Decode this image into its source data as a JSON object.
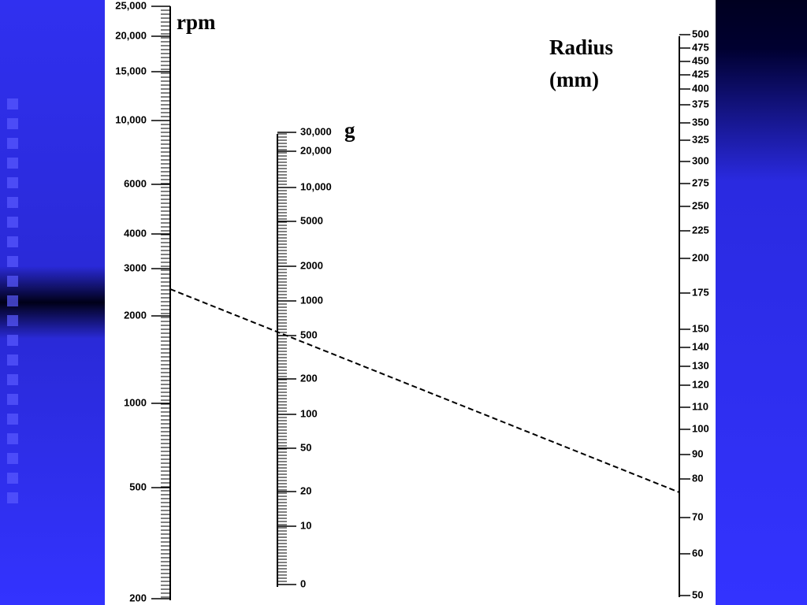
{
  "scales": [
    {
      "title": [
        "rpm"
      ],
      "ticks": [
        "25,000",
        "20,000",
        "15,000",
        "10,000",
        "6000",
        "4000",
        "3000",
        "2000",
        "1000",
        "500",
        "200"
      ]
    },
    {
      "title": [
        "g"
      ],
      "ticks": [
        "30,000",
        "20,000",
        "10,000",
        "5000",
        "2000",
        "1000",
        "500",
        "200",
        "100",
        "50",
        "20",
        "10",
        "0"
      ]
    },
    {
      "title": [
        "Radius",
        "(mm)"
      ],
      "ticks": [
        "500",
        "475",
        "450",
        "425",
        "400",
        "375",
        "350",
        "325",
        "300",
        "275",
        "250",
        "225",
        "200",
        "175",
        "150",
        "140",
        "130",
        "120",
        "110",
        "100",
        "90",
        "80",
        "70",
        "60",
        "50"
      ]
    }
  ]
}
